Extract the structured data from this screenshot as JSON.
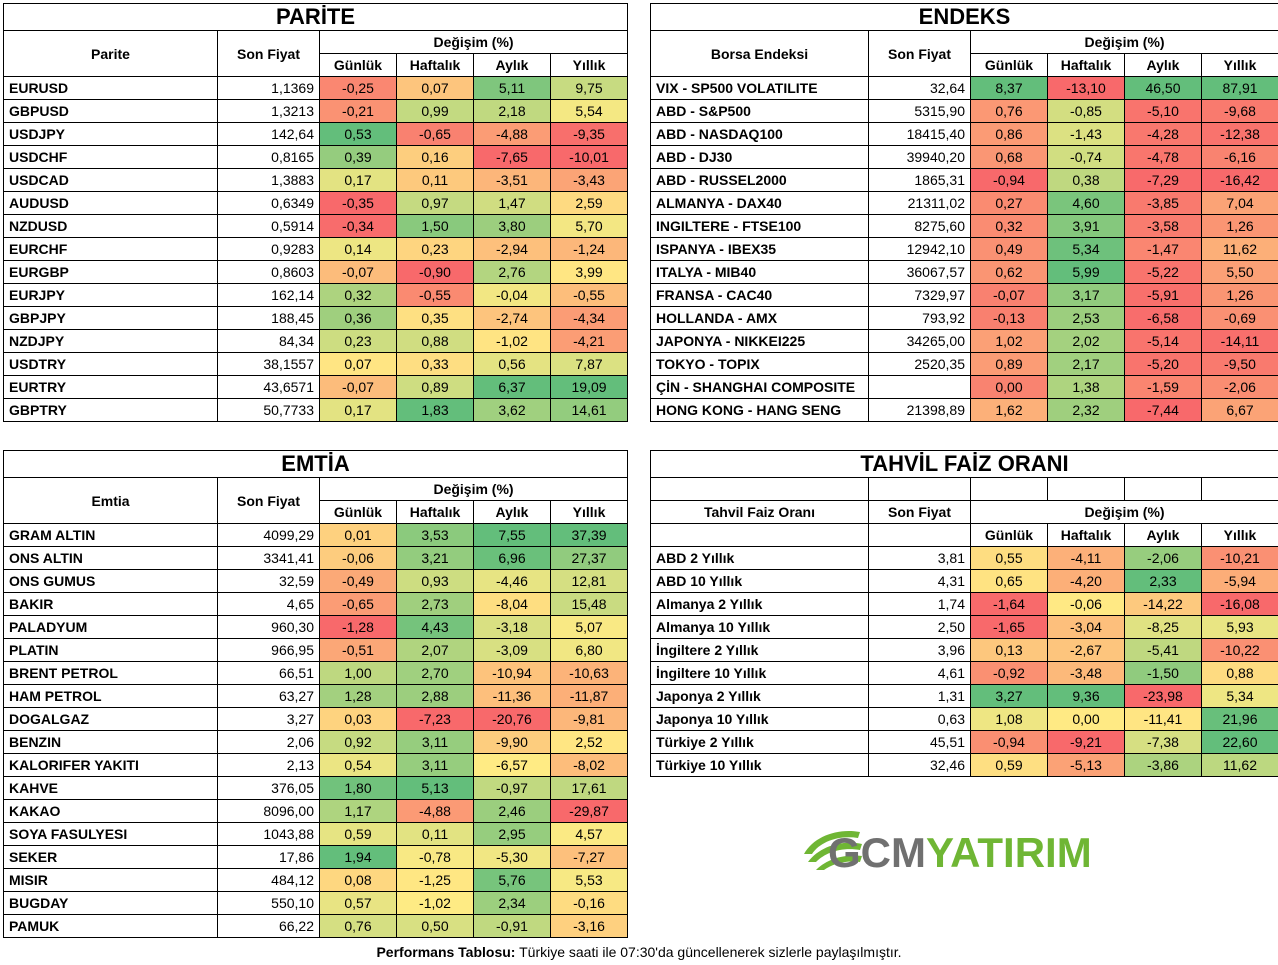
{
  "palette": {
    "red": "#f8696b",
    "orange": "#fba976",
    "yellow": "#fee983",
    "lightgreen": "#c7dd81",
    "green": "#63be7b"
  },
  "headers": {
    "price": "Son Fiyat",
    "change": "Değişim (%)",
    "daily": "Günlük",
    "weekly": "Haftalık",
    "monthly": "Aylık",
    "yearly": "Yıllık"
  },
  "parite": {
    "title": "PARİTE",
    "col_name": "Parite",
    "rows": [
      {
        "name": "EURUSD",
        "price": "1,1369",
        "d": "-0,25",
        "w": "0,07",
        "m": "5,11",
        "y": "9,75"
      },
      {
        "name": "GBPUSD",
        "price": "1,3213",
        "d": "-0,21",
        "w": "0,99",
        "m": "2,18",
        "y": "5,54"
      },
      {
        "name": "USDJPY",
        "price": "142,64",
        "d": "0,53",
        "w": "-0,65",
        "m": "-4,88",
        "y": "-9,35"
      },
      {
        "name": "USDCHF",
        "price": "0,8165",
        "d": "0,39",
        "w": "0,16",
        "m": "-7,65",
        "y": "-10,01"
      },
      {
        "name": "USDCAD",
        "price": "1,3883",
        "d": "0,17",
        "w": "0,11",
        "m": "-3,51",
        "y": "-3,43"
      },
      {
        "name": "AUDUSD",
        "price": "0,6349",
        "d": "-0,35",
        "w": "0,97",
        "m": "1,47",
        "y": "2,59"
      },
      {
        "name": "NZDUSD",
        "price": "0,5914",
        "d": "-0,34",
        "w": "1,50",
        "m": "3,80",
        "y": "5,70"
      },
      {
        "name": "EURCHF",
        "price": "0,9283",
        "d": "0,14",
        "w": "0,23",
        "m": "-2,94",
        "y": "-1,24"
      },
      {
        "name": "EURGBP",
        "price": "0,8603",
        "d": "-0,07",
        "w": "-0,90",
        "m": "2,76",
        "y": "3,99"
      },
      {
        "name": "EURJPY",
        "price": "162,14",
        "d": "0,32",
        "w": "-0,55",
        "m": "-0,04",
        "y": "-0,55"
      },
      {
        "name": "GBPJPY",
        "price": "188,45",
        "d": "0,36",
        "w": "0,35",
        "m": "-2,74",
        "y": "-4,34"
      },
      {
        "name": "NZDJPY",
        "price": "84,34",
        "d": "0,23",
        "w": "0,88",
        "m": "-1,02",
        "y": "-4,21"
      },
      {
        "name": "USDTRY",
        "price": "38,1557",
        "d": "0,07",
        "w": "0,33",
        "m": "0,56",
        "y": "7,87"
      },
      {
        "name": "EURTRY",
        "price": "43,6571",
        "d": "-0,07",
        "w": "0,89",
        "m": "6,37",
        "y": "19,09"
      },
      {
        "name": "GBPTRY",
        "price": "50,7733",
        "d": "0,17",
        "w": "1,83",
        "m": "3,62",
        "y": "14,61"
      }
    ]
  },
  "endeks": {
    "title": "ENDEKS",
    "col_name": "Borsa Endeksi",
    "rows": [
      {
        "name": "VIX  - SP500 VOLATILITE",
        "price": "32,64",
        "d": "8,37",
        "w": "-13,10",
        "m": "46,50",
        "y": "87,91"
      },
      {
        "name": "ABD - S&P500",
        "price": "5315,90",
        "d": "0,76",
        "w": "-0,85",
        "m": "-5,10",
        "y": "-9,68"
      },
      {
        "name": "ABD - NASDAQ100",
        "price": "18415,40",
        "d": "0,86",
        "w": "-1,43",
        "m": "-4,28",
        "y": "-12,38"
      },
      {
        "name": "ABD - DJ30",
        "price": "39940,20",
        "d": "0,68",
        "w": "-0,74",
        "m": "-4,78",
        "y": "-6,16"
      },
      {
        "name": "ABD - RUSSEL2000",
        "price": "1865,31",
        "d": "-0,94",
        "w": "0,38",
        "m": "-7,29",
        "y": "-16,42"
      },
      {
        "name": "ALMANYA - DAX40",
        "price": "21311,02",
        "d": "0,27",
        "w": "4,60",
        "m": "-3,85",
        "y": "7,04"
      },
      {
        "name": "INGILTERE - FTSE100",
        "price": "8275,60",
        "d": "0,32",
        "w": "3,91",
        "m": "-3,58",
        "y": "1,26"
      },
      {
        "name": "ISPANYA - IBEX35",
        "price": "12942,10",
        "d": "0,49",
        "w": "5,34",
        "m": "-1,47",
        "y": "11,62"
      },
      {
        "name": "ITALYA - MIB40",
        "price": "36067,57",
        "d": "0,62",
        "w": "5,99",
        "m": "-5,22",
        "y": "5,50"
      },
      {
        "name": "FRANSA - CAC40",
        "price": "7329,97",
        "d": "-0,07",
        "w": "3,17",
        "m": "-5,91",
        "y": "1,26"
      },
      {
        "name": "HOLLANDA - AMX",
        "price": "793,92",
        "d": "-0,13",
        "w": "2,53",
        "m": "-6,58",
        "y": "-0,69"
      },
      {
        "name": "JAPONYA - NIKKEI225",
        "price": "34265,00",
        "d": "1,02",
        "w": "2,02",
        "m": "-5,14",
        "y": "-14,11"
      },
      {
        "name": "TOKYO - TOPIX",
        "price": "2520,35",
        "d": "0,89",
        "w": "2,17",
        "m": "-5,20",
        "y": "-9,50"
      },
      {
        "name": "ÇİN - SHANGHAI COMPOSITE",
        "price": "",
        "d": "0,00",
        "w": "1,38",
        "m": "-1,59",
        "y": "-2,06"
      },
      {
        "name": "HONG KONG - HANG SENG",
        "price": "21398,89",
        "d": "1,62",
        "w": "2,32",
        "m": "-7,44",
        "y": "6,67"
      }
    ]
  },
  "emtia": {
    "title": "EMTİA",
    "col_name": "Emtia",
    "rows": [
      {
        "name": "GRAM ALTIN",
        "price": "4099,29",
        "d": "0,01",
        "w": "3,53",
        "m": "7,55",
        "y": "37,39"
      },
      {
        "name": "ONS ALTIN",
        "price": "3341,41",
        "d": "-0,06",
        "w": "3,21",
        "m": "6,96",
        "y": "27,37"
      },
      {
        "name": "ONS GUMUS",
        "price": "32,59",
        "d": "-0,49",
        "w": "0,93",
        "m": "-4,46",
        "y": "12,81"
      },
      {
        "name": "BAKIR",
        "price": "4,65",
        "d": "-0,65",
        "w": "2,73",
        "m": "-8,04",
        "y": "15,48"
      },
      {
        "name": "PALADYUM",
        "price": "960,30",
        "d": "-1,28",
        "w": "4,43",
        "m": "-3,18",
        "y": "5,07"
      },
      {
        "name": "PLATIN",
        "price": "966,95",
        "d": "-0,51",
        "w": "2,07",
        "m": "-3,09",
        "y": "6,80"
      },
      {
        "name": "BRENT PETROL",
        "price": "66,51",
        "d": "1,00",
        "w": "2,70",
        "m": "-10,94",
        "y": "-10,63"
      },
      {
        "name": "HAM PETROL",
        "price": "63,27",
        "d": "1,28",
        "w": "2,88",
        "m": "-11,36",
        "y": "-11,87"
      },
      {
        "name": "DOGALGAZ",
        "price": "3,27",
        "d": "0,03",
        "w": "-7,23",
        "m": "-20,76",
        "y": "-9,81"
      },
      {
        "name": "BENZIN",
        "price": "2,06",
        "d": "0,92",
        "w": "3,11",
        "m": "-9,90",
        "y": "2,52"
      },
      {
        "name": "KALORIFER YAKITI",
        "price": "2,13",
        "d": "0,54",
        "w": "3,11",
        "m": "-6,57",
        "y": "-8,02"
      },
      {
        "name": "KAHVE",
        "price": "376,05",
        "d": "1,80",
        "w": "5,13",
        "m": "-0,97",
        "y": "17,61"
      },
      {
        "name": "KAKAO",
        "price": "8096,00",
        "d": "1,17",
        "w": "-4,88",
        "m": "2,46",
        "y": "-29,87"
      },
      {
        "name": "SOYA FASULYESI",
        "price": "1043,88",
        "d": "0,59",
        "w": "0,11",
        "m": "2,95",
        "y": "4,57"
      },
      {
        "name": "SEKER",
        "price": "17,86",
        "d": "1,94",
        "w": "-0,78",
        "m": "-5,30",
        "y": "-7,27"
      },
      {
        "name": "MISIR",
        "price": "484,12",
        "d": "0,08",
        "w": "-1,25",
        "m": "5,76",
        "y": "5,53"
      },
      {
        "name": "BUGDAY",
        "price": "550,10",
        "d": "0,57",
        "w": "-1,02",
        "m": "2,34",
        "y": "-0,16"
      },
      {
        "name": "PAMUK",
        "price": "66,22",
        "d": "0,76",
        "w": "0,50",
        "m": "-0,91",
        "y": "-3,16"
      }
    ]
  },
  "tahvil": {
    "title": "TAHVİL FAİZ ORANI",
    "col_name": "Tahvil Faiz Oranı",
    "rows": [
      {
        "name": "ABD 2 Yıllık",
        "price": "3,81",
        "d": "0,55",
        "w": "-4,11",
        "m": "-2,06",
        "y": "-10,21"
      },
      {
        "name": "ABD 10 Yıllık",
        "price": "4,31",
        "d": "0,65",
        "w": "-4,20",
        "m": "2,33",
        "y": "-5,94"
      },
      {
        "name": "Almanya 2 Yıllık",
        "price": "1,74",
        "d": "-1,64",
        "w": "-0,06",
        "m": "-14,22",
        "y": "-16,08"
      },
      {
        "name": "Almanya 10 Yıllık",
        "price": "2,50",
        "d": "-1,65",
        "w": "-3,04",
        "m": "-8,25",
        "y": "5,93"
      },
      {
        "name": "İngiltere 2 Yıllık",
        "price": "3,96",
        "d": "0,13",
        "w": "-2,67",
        "m": "-5,41",
        "y": "-10,22"
      },
      {
        "name": "İngiltere 10 Yıllık",
        "price": "4,61",
        "d": "-0,92",
        "w": "-3,48",
        "m": "-1,50",
        "y": "0,88"
      },
      {
        "name": "Japonya 2 Yıllık",
        "price": "1,31",
        "d": "3,27",
        "w": "9,36",
        "m": "-23,98",
        "y": "5,34"
      },
      {
        "name": "Japonya 10 Yıllık",
        "price": "0,63",
        "d": "1,08",
        "w": "0,00",
        "m": "-11,41",
        "y": "21,96"
      },
      {
        "name": "Türkiye 2 Yıllık",
        "price": "45,51",
        "d": "-0,94",
        "w": "-9,21",
        "m": "-7,38",
        "y": "22,60"
      },
      {
        "name": "Türkiye 10 Yıllık",
        "price": "32,46",
        "d": "0,59",
        "w": "-5,13",
        "m": "-3,86",
        "y": "11,62"
      }
    ]
  },
  "logo": {
    "text_gray": "GCM",
    "text_green": "YATIRIM",
    "gray": "#707070",
    "green": "#6fb634"
  },
  "footer": {
    "bold": "Performans Tablosu:",
    "text": " Türkiye saati ile 07:30'da güncellenerek sizlerle paylaşılmıştır."
  }
}
